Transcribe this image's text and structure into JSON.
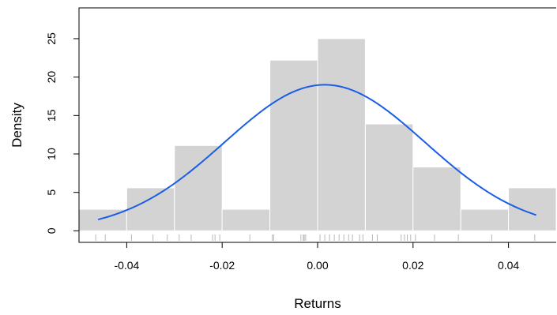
{
  "chart_data": {
    "type": "histogram",
    "xlabel": "Returns",
    "ylabel": "Density",
    "xlim": [
      -0.05,
      0.05
    ],
    "ylim": [
      -1.5,
      29
    ],
    "x_ticks": [
      {
        "value": -0.04,
        "label": "-0.04"
      },
      {
        "value": -0.02,
        "label": "-0.02"
      },
      {
        "value": 0.0,
        "label": "0.00"
      },
      {
        "value": 0.02,
        "label": "0.02"
      },
      {
        "value": 0.04,
        "label": "0.04"
      }
    ],
    "y_ticks": [
      {
        "value": 0,
        "label": "0"
      },
      {
        "value": 5,
        "label": "5"
      },
      {
        "value": 10,
        "label": "10"
      },
      {
        "value": 15,
        "label": "15"
      },
      {
        "value": 20,
        "label": "20"
      },
      {
        "value": 25,
        "label": "25"
      }
    ],
    "bins": [
      {
        "x0": -0.05,
        "x1": -0.04,
        "density": 2.8
      },
      {
        "x0": -0.04,
        "x1": -0.03,
        "density": 5.6
      },
      {
        "x0": -0.03,
        "x1": -0.02,
        "density": 11.1
      },
      {
        "x0": -0.02,
        "x1": -0.01,
        "density": 2.8
      },
      {
        "x0": -0.01,
        "x1": 0.0,
        "density": 22.2
      },
      {
        "x0": 0.0,
        "x1": 0.01,
        "density": 25.0
      },
      {
        "x0": 0.01,
        "x1": 0.02,
        "density": 13.9
      },
      {
        "x0": 0.02,
        "x1": 0.03,
        "density": 8.3
      },
      {
        "x0": 0.03,
        "x1": 0.04,
        "density": 2.8
      },
      {
        "x0": 0.04,
        "x1": 0.05,
        "density": 5.6
      }
    ],
    "density_curve": {
      "type": "normal",
      "mean": 0.0015,
      "sd": 0.021,
      "x_range": [
        -0.046,
        0.0458
      ],
      "color": "#1a5ee6"
    },
    "rug": [
      -0.0465,
      -0.0445,
      -0.039,
      -0.0345,
      -0.0315,
      -0.029,
      -0.0265,
      -0.022,
      -0.0215,
      -0.0205,
      -0.0142,
      -0.0095,
      -0.0092,
      -0.0035,
      -0.003,
      -0.0028,
      -0.0025,
      0.0005,
      0.0015,
      0.0025,
      0.0035,
      0.0045,
      0.0055,
      0.0065,
      0.0073,
      0.0088,
      0.0095,
      0.0115,
      0.0125,
      0.0175,
      0.0182,
      0.0188,
      0.0195,
      0.0205,
      0.0245,
      0.0295,
      0.0365,
      0.0455
    ],
    "bar_color": "#d3d3d3",
    "rug_color": "#b8b8b8",
    "grid": false,
    "legend": "none"
  }
}
